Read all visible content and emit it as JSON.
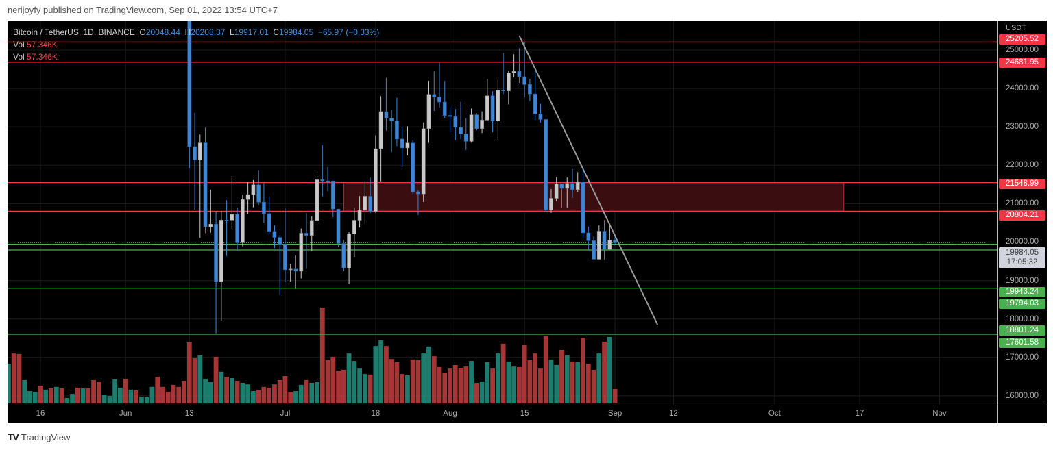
{
  "header": {
    "published": "nerijoyfy published on TradingView.com, Sep 01, 2022 13:54 UTC+7"
  },
  "legend": {
    "symbol": "Bitcoin / TetherUS, 1D, BINANCE",
    "o_label": "O",
    "o": "20048.44",
    "h_label": "H",
    "h": "20208.37",
    "l_label": "L",
    "l": "19917.01",
    "c_label": "C",
    "c": "19984.05",
    "change": "−65.97 (−0.33%)",
    "vol_label": "Vol",
    "vol": "57.346K"
  },
  "price_axis": {
    "currency": "USDT",
    "current_price": "19984.05",
    "countdown": "17:05:32",
    "levels": [
      {
        "label": "25205.52",
        "price": 25205.52,
        "color": "#f23645"
      },
      {
        "label": "24681.95",
        "price": 24681.95,
        "color": "#f23645"
      },
      {
        "label": "21548.99",
        "price": 21548.99,
        "color": "#f23645"
      },
      {
        "label": "20804.21",
        "price": 20804.21,
        "color": "#f23645"
      },
      {
        "label": "19943.24",
        "price": 19943.24,
        "color": "#4caf50"
      },
      {
        "label": "19794.03",
        "price": 19794.03,
        "color": "#4caf50"
      },
      {
        "label": "18801.24",
        "price": 18801.24,
        "color": "#4caf50"
      },
      {
        "label": "17601.58",
        "price": 17601.58,
        "color": "#4caf50"
      }
    ]
  },
  "footer": {
    "brand": "TradingView",
    "logo_mark": "TV"
  },
  "colors": {
    "up_candle": "#c9c9c9",
    "down_candle": "#3f86d6",
    "vol_up": "#1f8a7a",
    "vol_down": "#b83c3c",
    "zone": "#3a0d10",
    "trendline": "#9a9a9a"
  },
  "chart_data": {
    "type": "candlestick",
    "title": "Bitcoin / TetherUS, 1D, BINANCE",
    "ylabel": "USDT",
    "ylim": [
      15766,
      25766
    ],
    "y_ticks": [
      "25000.00",
      "24000.00",
      "23000.00",
      "22000.00",
      "21000.00",
      "20000.00",
      "19000.00",
      "18000.00",
      "17000.00",
      "16000.00"
    ],
    "x_ticks": [
      {
        "label": "16",
        "date": "2022-05-16"
      },
      {
        "label": "Jun",
        "date": "2022-06-01"
      },
      {
        "label": "13",
        "date": "2022-06-13"
      },
      {
        "label": "Jul",
        "date": "2022-07-01"
      },
      {
        "label": "18",
        "date": "2022-07-18"
      },
      {
        "label": "Aug",
        "date": "2022-08-01"
      },
      {
        "label": "15",
        "date": "2022-08-15"
      },
      {
        "label": "Sep",
        "date": "2022-09-01"
      },
      {
        "label": "12",
        "date": "2022-09-12"
      },
      {
        "label": "Oct",
        "date": "2022-10-01"
      },
      {
        "label": "17",
        "date": "2022-10-17"
      },
      {
        "label": "Nov",
        "date": "2022-11-01"
      }
    ],
    "grid": true,
    "candles_start": "2022-06-13",
    "ohlc": [
      [
        26574,
        26895,
        21925,
        22487
      ],
      [
        22485,
        23363,
        20846,
        22136
      ],
      [
        22136,
        22800,
        20111,
        22583
      ],
      [
        22583,
        22980,
        20232,
        20401
      ],
      [
        20400,
        21365,
        20246,
        20468
      ],
      [
        20468,
        20792,
        17622,
        18970
      ],
      [
        18970,
        20815,
        17960,
        20574
      ],
      [
        20574,
        21090,
        19637,
        20573
      ],
      [
        20573,
        21723,
        20348,
        20723
      ],
      [
        20723,
        20900,
        19770,
        19987
      ],
      [
        19988,
        21233,
        19890,
        21110
      ],
      [
        21110,
        21558,
        20740,
        21237
      ],
      [
        21237,
        21614,
        20906,
        21492
      ],
      [
        21492,
        21868,
        20960,
        21038
      ],
      [
        21038,
        21540,
        20500,
        20742
      ],
      [
        20742,
        21194,
        20200,
        20281
      ],
      [
        20281,
        20432,
        19845,
        20123
      ],
      [
        20123,
        20179,
        18626,
        19942
      ],
      [
        19942,
        20876,
        18975,
        19279
      ],
      [
        19279,
        19439,
        18975,
        19298
      ],
      [
        19298,
        19654,
        18781,
        19243
      ],
      [
        19243,
        20354,
        19055,
        20232
      ],
      [
        20232,
        20750,
        19304,
        20175
      ],
      [
        20175,
        20675,
        19761,
        20564
      ],
      [
        20564,
        21838,
        20251,
        21624
      ],
      [
        21624,
        22527,
        21189,
        21594
      ],
      [
        21594,
        21956,
        21322,
        21591
      ],
      [
        21591,
        21600,
        20650,
        20862
      ],
      [
        20862,
        20866,
        19875,
        19963
      ],
      [
        19963,
        20055,
        19240,
        19328
      ],
      [
        19329,
        20259,
        18910,
        20213
      ],
      [
        20213,
        20889,
        19616,
        20570
      ],
      [
        20570,
        21200,
        20380,
        20830
      ],
      [
        20830,
        21588,
        20480,
        21195
      ],
      [
        21195,
        21684,
        20753,
        20798
      ],
      [
        20798,
        22777,
        20762,
        22432
      ],
      [
        22432,
        23800,
        21581,
        23396
      ],
      [
        23396,
        24276,
        22906,
        23223
      ],
      [
        23223,
        23442,
        22341,
        23153
      ],
      [
        23153,
        23756,
        22500,
        22684
      ],
      [
        22684,
        22998,
        21955,
        22451
      ],
      [
        22451,
        23014,
        22257,
        22579
      ],
      [
        22579,
        22655,
        21250,
        21310
      ],
      [
        21310,
        21350,
        20706,
        21254
      ],
      [
        21254,
        23112,
        21042,
        22953
      ],
      [
        22954,
        24199,
        22582,
        23844
      ],
      [
        23845,
        24442,
        23414,
        23777
      ],
      [
        23777,
        24668,
        23502,
        23644
      ],
      [
        23644,
        24194,
        23227,
        23293
      ],
      [
        23296,
        23509,
        22850,
        23269
      ],
      [
        23267,
        23465,
        22654,
        22988
      ],
      [
        22985,
        23647,
        22681,
        22818
      ],
      [
        22816,
        23223,
        22400,
        22622
      ],
      [
        22622,
        23475,
        22587,
        23312
      ],
      [
        23313,
        23354,
        22909,
        22955
      ],
      [
        22954,
        23402,
        22838,
        23175
      ],
      [
        23175,
        24245,
        23154,
        23810
      ],
      [
        23810,
        23929,
        22865,
        23150
      ],
      [
        23151,
        24226,
        22664,
        23954
      ],
      [
        23954,
        24918,
        23853,
        23935
      ],
      [
        23934,
        24456,
        23583,
        24403
      ],
      [
        24402,
        24888,
        24296,
        24441
      ],
      [
        24442,
        25047,
        24146,
        24305
      ],
      [
        24306,
        25211,
        23773,
        24101
      ],
      [
        24102,
        24247,
        23671,
        23855
      ],
      [
        23856,
        24446,
        23180,
        23336
      ],
      [
        23336,
        23600,
        23108,
        23191
      ],
      [
        23191,
        23203,
        20783,
        20834
      ],
      [
        20835,
        21382,
        20761,
        21140
      ],
      [
        21140,
        21692,
        21060,
        21515
      ],
      [
        21516,
        21522,
        20890,
        21400
      ],
      [
        21400,
        21683,
        20890,
        21529
      ],
      [
        21529,
        21900,
        21152,
        21368
      ],
      [
        21368,
        21819,
        21310,
        21559
      ],
      [
        21560,
        21886,
        20107,
        20241
      ],
      [
        20240,
        20402,
        19800,
        20037
      ],
      [
        20037,
        20148,
        19600,
        19556
      ],
      [
        19555,
        20433,
        19550,
        20285
      ],
      [
        20284,
        20575,
        19540,
        19811
      ],
      [
        19812,
        20490,
        19797,
        20050
      ],
      [
        20048.44,
        20208.37,
        19917.01,
        19984.05
      ]
    ],
    "volume_start": "2022-05-10",
    "volume_unit": "K",
    "volume": [
      158,
      199,
      197,
      93,
      49,
      46,
      71,
      55,
      60,
      66,
      60,
      22,
      38,
      63,
      60,
      60,
      93,
      87,
      35,
      30,
      96,
      63,
      98,
      55,
      52,
      27,
      25,
      66,
      106,
      66,
      46,
      74,
      66,
      90,
      243,
      180,
      191,
      98,
      85,
      186,
      126,
      106,
      101,
      90,
      82,
      76,
      49,
      52,
      66,
      63,
      76,
      93,
      109,
      46,
      49,
      74,
      93,
      82,
      85,
      382,
      172,
      186,
      131,
      134,
      199,
      169,
      139,
      117,
      115,
      229,
      251,
      229,
      177,
      164,
      117,
      112,
      175,
      172,
      199,
      227,
      188,
      145,
      123,
      139,
      153,
      142,
      147,
      169,
      82,
      87,
      164,
      139,
      199,
      238,
      167,
      147,
      145,
      232,
      172,
      199,
      139,
      270,
      175,
      153,
      213,
      191,
      167,
      164,
      262,
      158,
      134,
      199,
      246,
      265,
      57.346
    ],
    "volume_direction": "trrtttrtrtrttrtrrrttttrtrtttrrrrrrrrtttrtrtrtttrrrrrrrttrttrrrrrttttrttrrrrtrrttrrrrrrrtrttrtrttrrrrrrttrtrtrrrtrtr",
    "zone": {
      "top": 21548.99,
      "bottom": 20804.21,
      "from": "2022-07-12",
      "to": "2022-10-14"
    },
    "trendline": {
      "from": {
        "date": "2022-08-14",
        "price": 25374
      },
      "to": {
        "date": "2022-09-09",
        "price": 17852
      }
    },
    "current_price_line": 19984.05
  }
}
